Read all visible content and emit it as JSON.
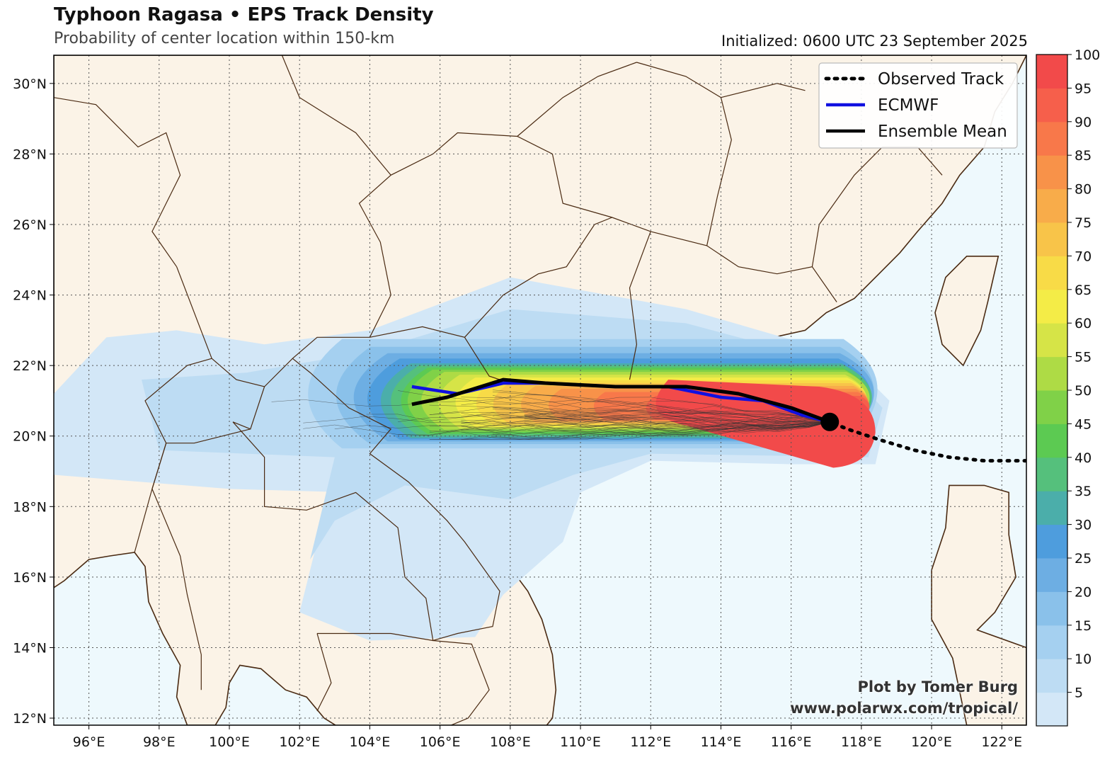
{
  "header": {
    "title": "Typhoon Ragasa • EPS Track Density",
    "subtitle": "Probability of center location within 150-km",
    "initialized": "Initialized: 0600 UTC 23 September 2025"
  },
  "map": {
    "lon_range": [
      95,
      122.7
    ],
    "lat_range": [
      11.8,
      30.8
    ],
    "lon_ticks": [
      96,
      98,
      100,
      102,
      104,
      106,
      108,
      110,
      112,
      114,
      116,
      118,
      120,
      122
    ],
    "lat_ticks": [
      12,
      14,
      16,
      18,
      20,
      22,
      24,
      26,
      28,
      30
    ],
    "lon_tick_labels": [
      "96°E",
      "98°E",
      "100°E",
      "102°E",
      "104°E",
      "106°E",
      "108°E",
      "110°E",
      "112°E",
      "114°E",
      "116°E",
      "118°E",
      "120°E",
      "122°E"
    ],
    "lat_tick_labels": [
      "12°N",
      "14°N",
      "16°N",
      "18°N",
      "20°N",
      "22°N",
      "24°N",
      "26°N",
      "28°N",
      "30°N"
    ],
    "colors": {
      "ocean": "#eef9fd",
      "land": "#fbf3e7",
      "border": "#4a2a12",
      "grid": "#555555"
    }
  },
  "legend": {
    "items": [
      {
        "label": "Observed Track",
        "style": "dotted",
        "color": "#000000"
      },
      {
        "label": "ECMWF",
        "style": "solid",
        "color": "#1010e0"
      },
      {
        "label": "Ensemble Mean",
        "style": "solid",
        "color": "#000000"
      }
    ]
  },
  "colorbar": {
    "tick_labels": [
      "5",
      "10",
      "15",
      "20",
      "25",
      "30",
      "35",
      "40",
      "45",
      "50",
      "55",
      "60",
      "65",
      "70",
      "75",
      "80",
      "85",
      "90",
      "95",
      "100"
    ],
    "colors": [
      "#d3e7f7",
      "#bddcf3",
      "#a5d0f0",
      "#8ac1ea",
      "#6daee3",
      "#4e9ddd",
      "#4baeaa",
      "#55c07c",
      "#5cca52",
      "#80d148",
      "#aedb45",
      "#d6e447",
      "#f4ec47",
      "#f8db47",
      "#f8c449",
      "#f8ac4a",
      "#f89249",
      "#f8784a",
      "#f65f4b",
      "#f24a4a"
    ]
  },
  "tracks": {
    "observed": [
      [
        122.7,
        19.3
      ],
      [
        121.5,
        19.3
      ],
      [
        120.5,
        19.4
      ],
      [
        119.5,
        19.6
      ],
      [
        118.5,
        19.9
      ],
      [
        117.6,
        20.2
      ],
      [
        117.1,
        20.4
      ]
    ],
    "ecmwf": [
      [
        117.1,
        20.4
      ],
      [
        116.3,
        20.6
      ],
      [
        115.2,
        21.0
      ],
      [
        114.0,
        21.1
      ],
      [
        112.5,
        21.4
      ],
      [
        111.0,
        21.4
      ],
      [
        109.0,
        21.5
      ],
      [
        107.8,
        21.5
      ],
      [
        106.5,
        21.2
      ],
      [
        105.2,
        21.4
      ]
    ],
    "ensemble_mean": [
      [
        117.1,
        20.4
      ],
      [
        116.0,
        20.8
      ],
      [
        114.5,
        21.2
      ],
      [
        113.0,
        21.4
      ],
      [
        111.0,
        21.4
      ],
      [
        109.0,
        21.5
      ],
      [
        107.8,
        21.6
      ],
      [
        106.2,
        21.1
      ],
      [
        105.2,
        20.9
      ]
    ],
    "initial_position": [
      117.1,
      20.4
    ]
  },
  "credit": {
    "line1": "Plot by Tomer Burg",
    "line2": "www.polarwx.com/tropical/"
  }
}
